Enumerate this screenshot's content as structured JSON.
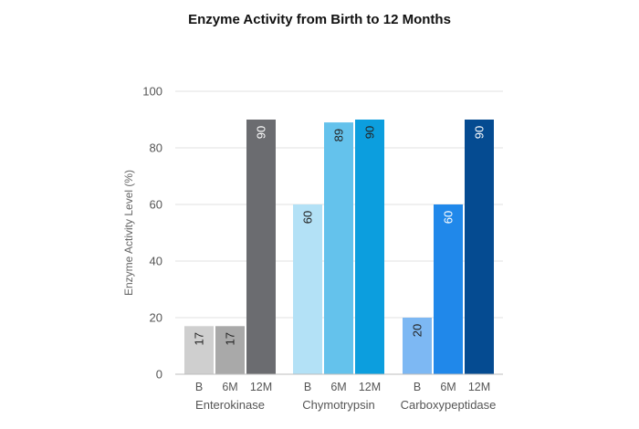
{
  "chart_data": {
    "type": "bar",
    "title": "Enzyme Activity from Birth to 12 Months",
    "ylabel": "Enzyme Activity Level (%)",
    "xlabel": "",
    "ylim": [
      0,
      100
    ],
    "yticks": [
      0,
      20,
      40,
      60,
      80,
      100
    ],
    "grid": true,
    "groups": [
      {
        "name": "Enterokinase",
        "bars": [
          {
            "label": "B",
            "value": 17,
            "color": "#cfcfcf",
            "label_color": "#222222"
          },
          {
            "label": "6M",
            "value": 17,
            "color": "#a9a9a9",
            "label_color": "#222222"
          },
          {
            "label": "12M",
            "value": 90,
            "color": "#6b6c70",
            "label_color": "#ffffff"
          }
        ]
      },
      {
        "name": "Chymotrypsin",
        "bars": [
          {
            "label": "B",
            "value": 60,
            "color": "#b3e1f6",
            "label_color": "#222222"
          },
          {
            "label": "6M",
            "value": 89,
            "color": "#64c2ec",
            "label_color": "#222222"
          },
          {
            "label": "12M",
            "value": 90,
            "color": "#0c9ede",
            "label_color": "#222222"
          }
        ]
      },
      {
        "name": "Carboxypeptidase",
        "bars": [
          {
            "label": "B",
            "value": 20,
            "color": "#7db8f3",
            "label_color": "#222222"
          },
          {
            "label": "6M",
            "value": 60,
            "color": "#2088ea",
            "label_color": "#ffffff"
          },
          {
            "label": "12M",
            "value": 90,
            "color": "#054b91",
            "label_color": "#ffffff"
          }
        ]
      }
    ]
  }
}
